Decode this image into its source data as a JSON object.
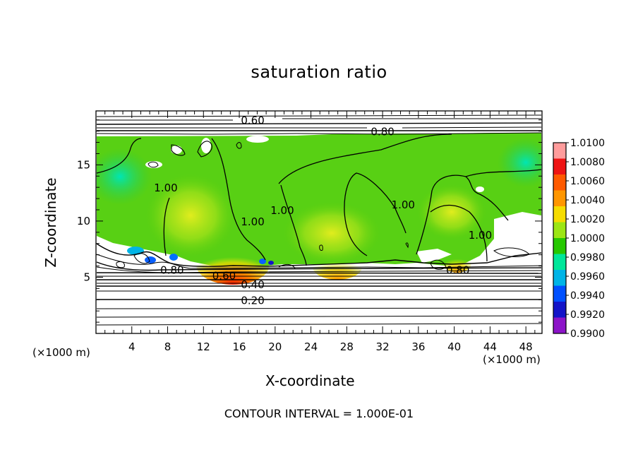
{
  "chart_data": {
    "type": "heatmap",
    "title": "saturation ratio",
    "xlabel": "X-coordinate",
    "ylabel": "Z-coordinate",
    "x_unit": "(×1000 m)",
    "xlim": [
      0,
      49.8
    ],
    "ylim": [
      0,
      19.8
    ],
    "x_ticks": [
      4,
      8,
      12,
      16,
      20,
      24,
      28,
      32,
      36,
      40,
      44,
      48
    ],
    "y_ticks": [
      5,
      10,
      15
    ],
    "colorbar": {
      "ticks": [
        "1.0100",
        "1.0080",
        "1.0060",
        "1.0040",
        "1.0020",
        "1.0000",
        "0.9980",
        "0.9960",
        "0.9940",
        "0.9920",
        "0.9900"
      ],
      "colors": [
        "#ff9c9c",
        "#ee1414",
        "#ff5a00",
        "#ff9600",
        "#f5dc00",
        "#9ce614",
        "#26c800",
        "#00e69a",
        "#00b4e6",
        "#0050ff",
        "#1414c8",
        "#8c14c8"
      ]
    },
    "contour_labels": [
      {
        "text": "0.60",
        "x": 17.5,
        "y": 19.0
      },
      {
        "text": "0.80",
        "x": 32.0,
        "y": 18.0
      },
      {
        "text": "1.00",
        "x": 7.8,
        "y": 13.0
      },
      {
        "text": "1.00",
        "x": 17.5,
        "y": 10.0
      },
      {
        "text": "1.00",
        "x": 20.8,
        "y": 11.0
      },
      {
        "text": "1.00",
        "x": 34.3,
        "y": 11.5
      },
      {
        "text": "1.00",
        "x": 42.9,
        "y": 8.8
      },
      {
        "text": "0.80",
        "x": 8.5,
        "y": 5.7
      },
      {
        "text": "0.60",
        "x": 14.3,
        "y": 5.2
      },
      {
        "text": "0.40",
        "x": 17.5,
        "y": 4.4
      },
      {
        "text": "0.20",
        "x": 17.5,
        "y": 3.0
      },
      {
        "text": "0.80",
        "x": 40.4,
        "y": 5.7
      }
    ],
    "annotation": "CONTOUR INTERVAL = 1.000E-01"
  }
}
